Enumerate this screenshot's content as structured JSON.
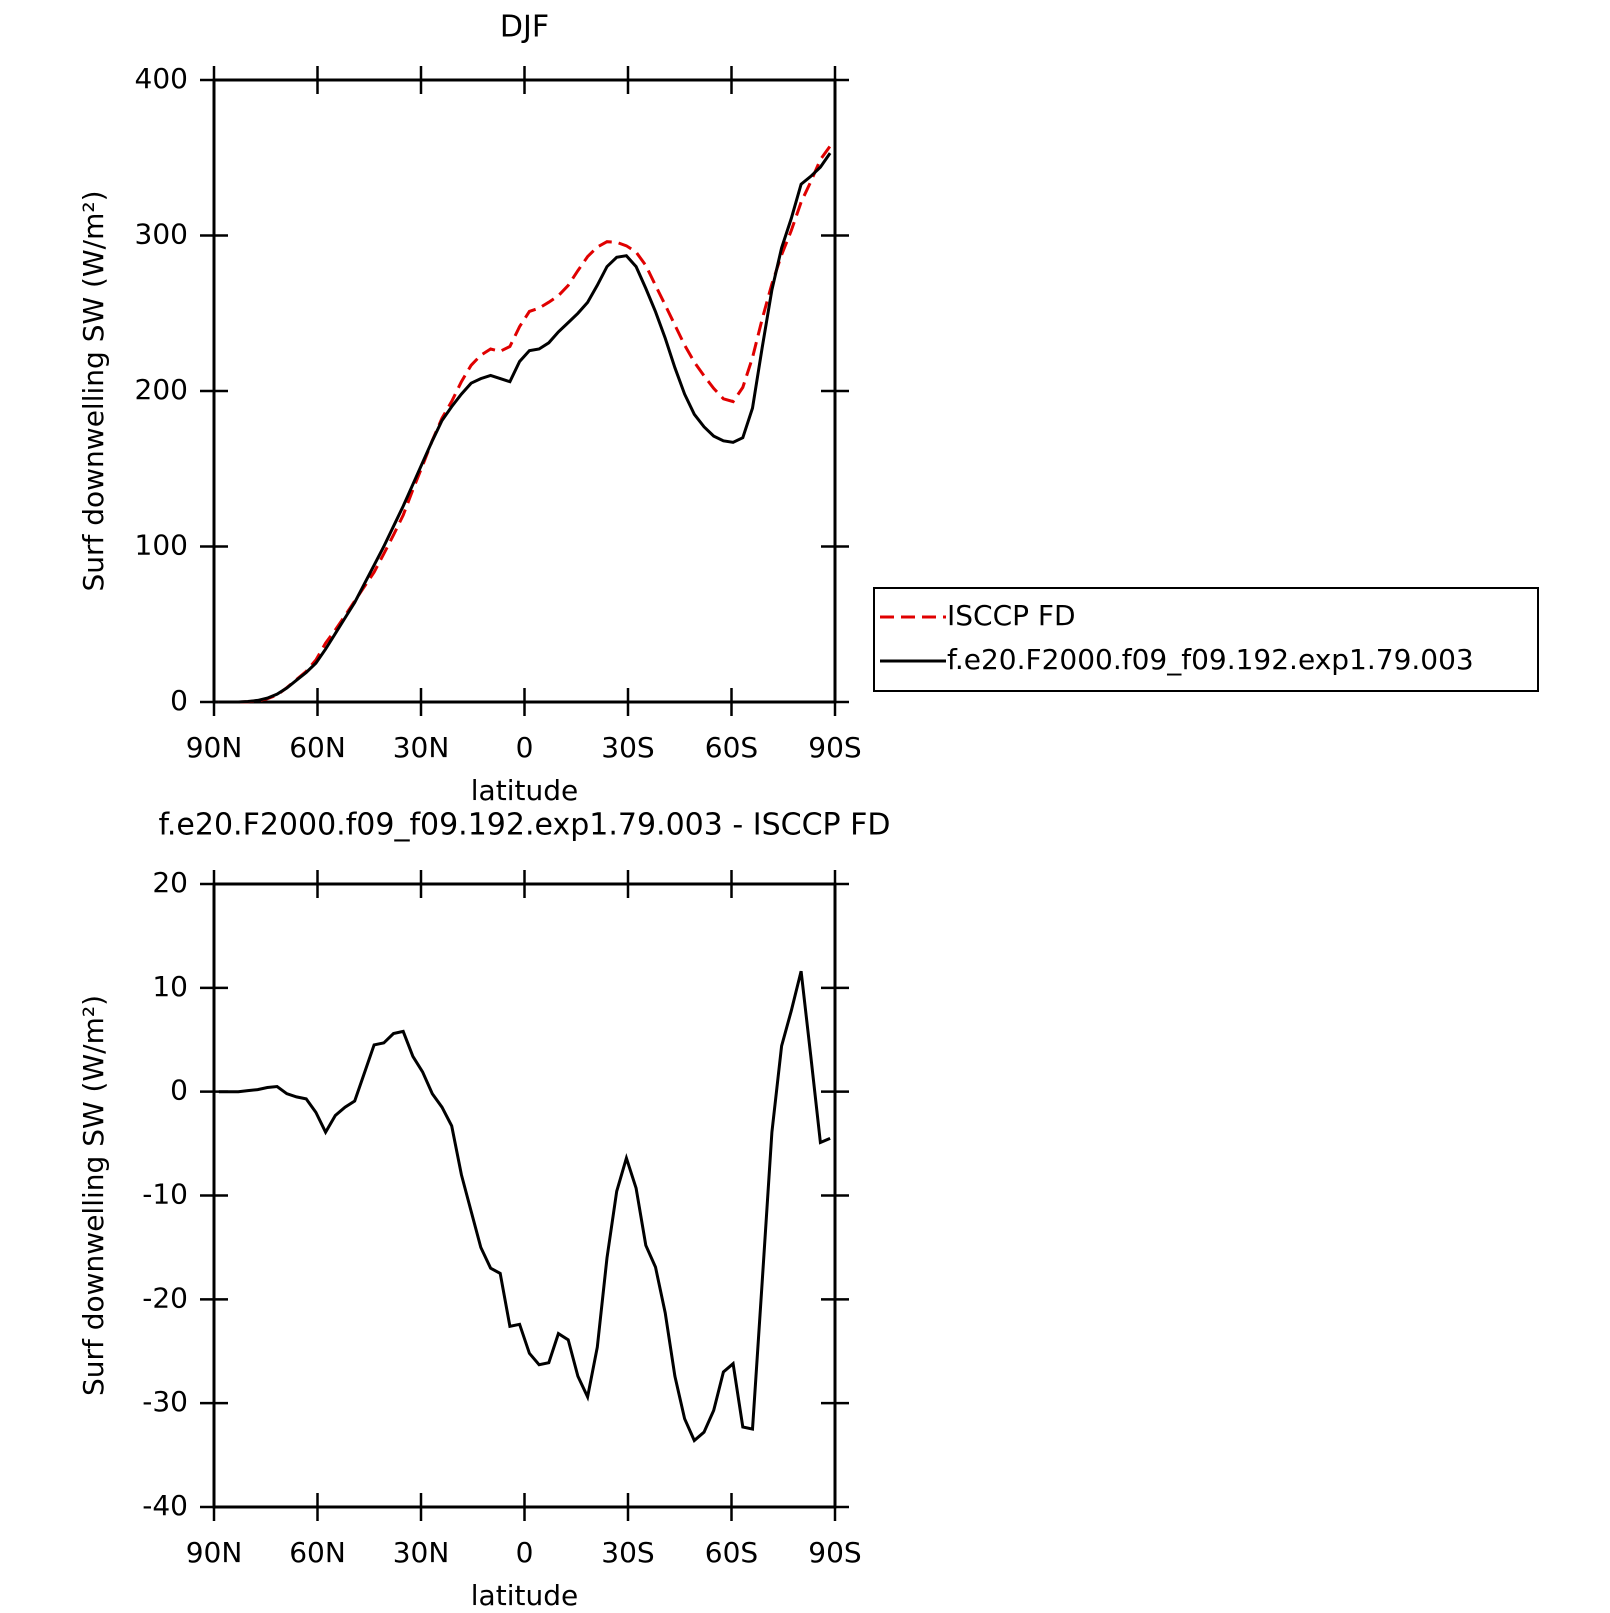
{
  "chart_data": [
    {
      "type": "line",
      "title": "DJF",
      "xlabel": "latitude",
      "ylabel": "Surf downwelling SW (W/m²)",
      "x": [
        88.59,
        85.78,
        82.97,
        80.16,
        77.34,
        74.53,
        71.72,
        68.91,
        66.09,
        63.28,
        60.47,
        57.66,
        54.84,
        52.03,
        49.22,
        46.41,
        43.59,
        40.78,
        37.97,
        35.16,
        32.34,
        29.53,
        26.72,
        23.91,
        21.09,
        18.28,
        15.47,
        12.66,
        9.84,
        7.03,
        4.22,
        1.41,
        -1.41,
        -4.22,
        -7.03,
        -9.84,
        -12.66,
        -15.47,
        -18.28,
        -21.09,
        -23.91,
        -26.72,
        -29.53,
        -32.34,
        -35.16,
        -37.97,
        -40.78,
        -43.59,
        -46.41,
        -49.22,
        -52.03,
        -54.84,
        -57.66,
        -60.47,
        -63.28,
        -66.09,
        -68.91,
        -71.72,
        -74.53,
        -77.34,
        -80.16,
        -82.97,
        -85.78,
        -88.59
      ],
      "xlim": [
        90,
        -90
      ],
      "xticks": [
        {
          "value": 90,
          "label": "90N"
        },
        {
          "value": 60,
          "label": "60N"
        },
        {
          "value": 30,
          "label": "30N"
        },
        0,
        {
          "value": -30,
          "label": "30S"
        },
        {
          "value": -60,
          "label": "60S"
        },
        {
          "value": -90,
          "label": "90S"
        }
      ],
      "ylim": [
        0,
        400
      ],
      "yticks": [
        0,
        100,
        200,
        300,
        400
      ],
      "legend": "right",
      "series": [
        {
          "name": "ISCCP FD",
          "color": "#e00000",
          "dashed": true,
          "values": [
            0,
            0,
            0,
            0.2,
            0.8,
            2.1,
            4.5,
            9.2,
            14.5,
            19.7,
            27,
            37.9,
            46.3,
            55.5,
            64.9,
            74.2,
            83.5,
            95.3,
            107.4,
            120.2,
            136.6,
            152.1,
            168.2,
            182.5,
            193.3,
            206,
            216.5,
            223,
            227,
            225.5,
            228.6,
            241.4,
            251.2,
            253.3,
            257.1,
            261.3,
            267.9,
            277.4,
            286.4,
            292.6,
            296,
            295.6,
            293.4,
            289.3,
            280.8,
            267.9,
            255.3,
            242.4,
            229.5,
            218.6,
            209.8,
            201.7,
            195,
            193.2,
            202.3,
            221.5,
            246.3,
            268.9,
            287.6,
            303.2,
            321.4,
            334.5,
            348.9,
            357.5
          ]
        },
        {
          "name": "f.e20.F2000.f09_f09.192.exp1.79.003",
          "color": "#000000",
          "dashed": false,
          "values": [
            0,
            0,
            0,
            0.3,
            1,
            2.5,
            5,
            9,
            14,
            19,
            25,
            34,
            44,
            54,
            64,
            76,
            88,
            100,
            113,
            126,
            140,
            154,
            168,
            181,
            190,
            198,
            205,
            208,
            210,
            208,
            206,
            219,
            226,
            227,
            231,
            238,
            244,
            250,
            257,
            268,
            280,
            286,
            287,
            280,
            266,
            251,
            234,
            215,
            198,
            185,
            177,
            171,
            168,
            167,
            170,
            189,
            228,
            265,
            292,
            311,
            333,
            338,
            344,
            353
          ]
        }
      ]
    },
    {
      "type": "line",
      "title": "f.e20.F2000.f09_f09.192.exp1.79.003 - ISCCP FD",
      "xlabel": "latitude",
      "ylabel": "Surf downwelling SW (W/m²)",
      "x": [
        88.59,
        85.78,
        82.97,
        80.16,
        77.34,
        74.53,
        71.72,
        68.91,
        66.09,
        63.28,
        60.47,
        57.66,
        54.84,
        52.03,
        49.22,
        46.41,
        43.59,
        40.78,
        37.97,
        35.16,
        32.34,
        29.53,
        26.72,
        23.91,
        21.09,
        18.28,
        15.47,
        12.66,
        9.84,
        7.03,
        4.22,
        1.41,
        -1.41,
        -4.22,
        -7.03,
        -9.84,
        -12.66,
        -15.47,
        -18.28,
        -21.09,
        -23.91,
        -26.72,
        -29.53,
        -32.34,
        -35.16,
        -37.97,
        -40.78,
        -43.59,
        -46.41,
        -49.22,
        -52.03,
        -54.84,
        -57.66,
        -60.47,
        -63.28,
        -66.09,
        -68.91,
        -71.72,
        -74.53,
        -77.34,
        -80.16,
        -82.97,
        -85.78,
        -88.59
      ],
      "xlim": [
        90,
        -90
      ],
      "xticks": [
        {
          "value": 90,
          "label": "90N"
        },
        {
          "value": 60,
          "label": "60N"
        },
        {
          "value": 30,
          "label": "30N"
        },
        0,
        {
          "value": -30,
          "label": "30S"
        },
        {
          "value": -60,
          "label": "60S"
        },
        {
          "value": -90,
          "label": "90S"
        }
      ],
      "ylim": [
        -40,
        20
      ],
      "yticks": [
        -40,
        -30,
        -20,
        -10,
        0,
        10,
        20
      ],
      "series": [
        {
          "color": "#000000",
          "dashed": false,
          "values": [
            0,
            0,
            0,
            0.1,
            0.2,
            0.4,
            0.5,
            -0.2,
            -0.5,
            -0.7,
            -2,
            -3.9,
            -2.3,
            -1.5,
            -0.9,
            1.8,
            4.5,
            4.7,
            5.6,
            5.8,
            3.4,
            1.9,
            -0.2,
            -1.5,
            -3.3,
            -8,
            -11.5,
            -15,
            -17,
            -17.5,
            -22.6,
            -22.4,
            -25.2,
            -26.3,
            -26.1,
            -23.3,
            -23.9,
            -27.4,
            -29.4,
            -24.6,
            -16,
            -9.6,
            -6.4,
            -9.3,
            -14.8,
            -16.9,
            -21.3,
            -27.4,
            -31.5,
            -33.6,
            -32.8,
            -30.7,
            -27,
            -26.2,
            -32.3,
            -32.5,
            -18.3,
            -3.9,
            4.4,
            7.8,
            11.6,
            3.5,
            -4.9,
            -4.5
          ]
        }
      ]
    }
  ]
}
